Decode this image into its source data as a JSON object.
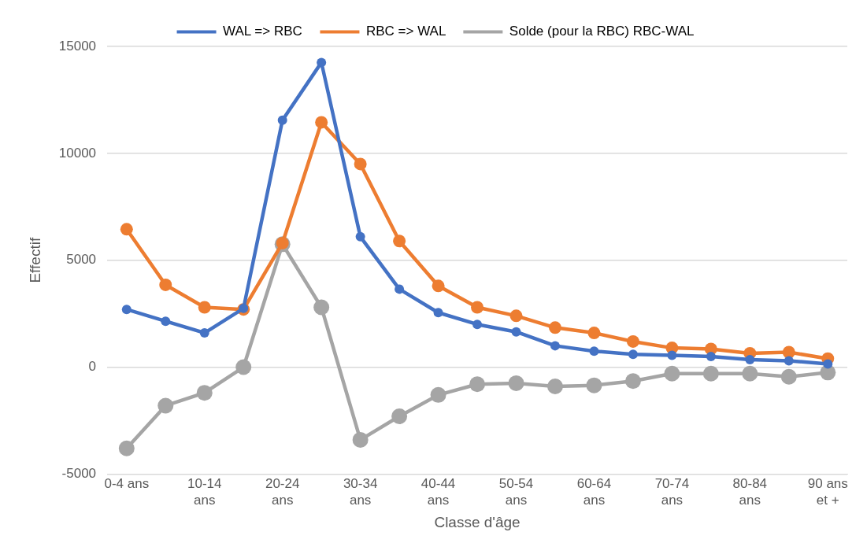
{
  "chart_data": {
    "type": "line",
    "xlabel": "Classe d'âge",
    "ylabel": "Effectif",
    "categories": [
      "0-4 ans",
      null,
      "10-14 ans",
      null,
      "20-24 ans",
      null,
      "30-34 ans",
      null,
      "40-44 ans",
      null,
      "50-54 ans",
      null,
      "60-64 ans",
      null,
      "70-74 ans",
      null,
      "80-84 ans",
      null,
      "90 ans et +"
    ],
    "series": [
      {
        "name": "WAL => RBC",
        "color": "#4472c4",
        "values": [
          2700,
          2150,
          1600,
          2750,
          11550,
          14250,
          6100,
          3650,
          2550,
          2000,
          1650,
          1000,
          750,
          600,
          550,
          500,
          350,
          300,
          150
        ]
      },
      {
        "name": "RBC => WAL",
        "color": "#ed7d31",
        "values": [
          6450,
          3850,
          2800,
          2700,
          5800,
          11450,
          9500,
          5900,
          3800,
          2800,
          2400,
          1850,
          1600,
          1200,
          900,
          850,
          650,
          700,
          400
        ]
      },
      {
        "name": "Solde (pour la RBC) RBC-WAL",
        "color": "#a5a5a5",
        "values": [
          -3800,
          -1800,
          -1200,
          0,
          5750,
          2800,
          -3400,
          -2300,
          -1300,
          -800,
          -750,
          -900,
          -850,
          -650,
          -300,
          -300,
          -300,
          -450,
          -250
        ]
      }
    ],
    "ylim": [
      -5000,
      15000
    ],
    "yticks": [
      -5000,
      0,
      5000,
      10000,
      15000
    ],
    "grid": "y",
    "legend": "top",
    "marker": "circle",
    "line_style": "solid"
  }
}
